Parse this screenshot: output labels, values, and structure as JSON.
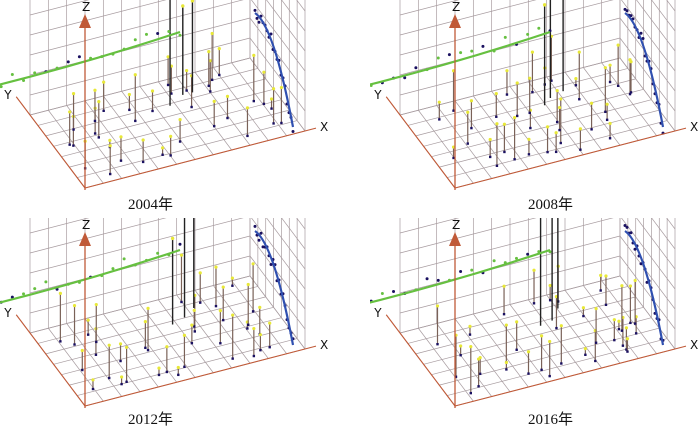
{
  "figure": {
    "axis_labels": {
      "x": "X",
      "y": "Y",
      "z": "Z"
    },
    "colors": {
      "grid": "#a89ca0",
      "z_axis": "#c05a38",
      "trend_xz": "#3050b0",
      "trend_yz": "#66c040",
      "point_top": "#e8e838",
      "point_dark": "#1a1060",
      "stem": "#7a6258",
      "spike": "#222222"
    }
  },
  "chart_data": [
    {
      "type": "scatter3d",
      "caption": "2004年",
      "xlabel": "X",
      "ylabel": "Y",
      "zlabel": "Z",
      "grid": true
    },
    {
      "type": "scatter3d",
      "caption": "2008年",
      "xlabel": "X",
      "ylabel": "Y",
      "zlabel": "Z",
      "grid": true
    },
    {
      "type": "scatter3d",
      "caption": "2012年",
      "xlabel": "X",
      "ylabel": "Y",
      "zlabel": "Z",
      "grid": true
    },
    {
      "type": "scatter3d",
      "caption": "2016年",
      "xlabel": "X",
      "ylabel": "Y",
      "zlabel": "Z",
      "grid": true
    }
  ]
}
